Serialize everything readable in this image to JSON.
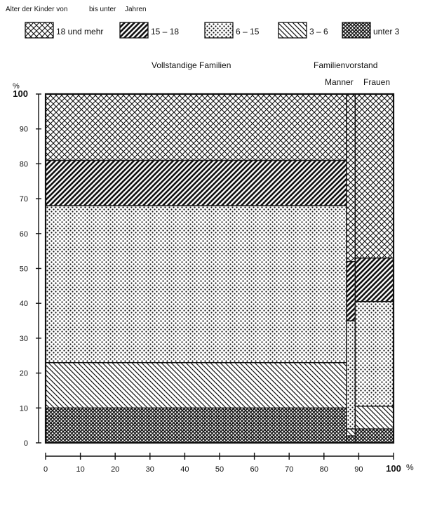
{
  "chart_data": {
    "type": "bar",
    "legend_title": {
      "part1": "Alter der Kinder von",
      "part2": "bis unter",
      "part3": "Jahren"
    },
    "legend_placement": "top",
    "group_labels": {
      "complete_families": "Vollstandige Familien",
      "family_head": "Familienvorstand",
      "men": "Manner",
      "women": "Frauen"
    },
    "x_unit": "%",
    "y_unit": "%",
    "xlim": [
      0,
      100
    ],
    "ylim": [
      0,
      100
    ],
    "x_ticks": [
      0,
      10,
      20,
      30,
      40,
      50,
      60,
      70,
      80,
      90,
      100
    ],
    "y_ticks": [
      0,
      10,
      20,
      30,
      40,
      50,
      60,
      70,
      80,
      90,
      100
    ],
    "grid": false,
    "categories": [
      "Vollstandige Familien",
      "Manner",
      "Frauen"
    ],
    "column_widths": [
      86.5,
      2.5,
      11
    ],
    "series": [
      {
        "name": "unter 3",
        "pattern": "crosshatch-dense",
        "values": [
          10,
          2,
          4
        ]
      },
      {
        "name": "3 – 6",
        "pattern": "diagonal-back",
        "values": [
          13,
          2,
          6.5
        ]
      },
      {
        "name": "6 – 15",
        "pattern": "dots",
        "values": [
          45,
          31,
          30
        ]
      },
      {
        "name": "15 – 18",
        "pattern": "diagonal-forward",
        "values": [
          13,
          17,
          12.5
        ]
      },
      {
        "name": "18 und mehr",
        "pattern": "crosshatch",
        "values": [
          19,
          48,
          47
        ]
      }
    ],
    "legend_order": [
      "18 und mehr",
      "15 – 18",
      "6 – 15",
      "3 – 6",
      "unter 3"
    ]
  }
}
